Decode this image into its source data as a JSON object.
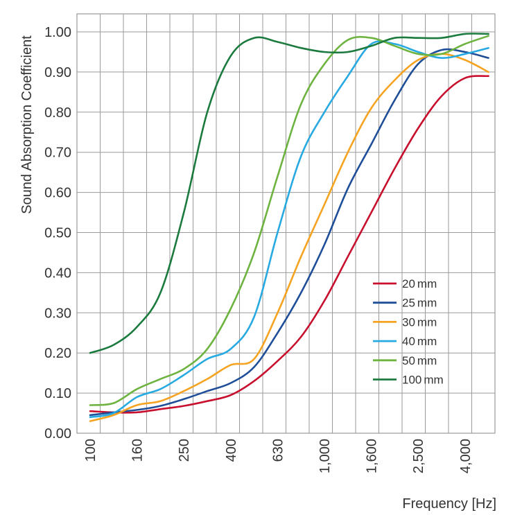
{
  "chart_data": {
    "type": "line",
    "title": "",
    "xlabel": "Frequency [Hz]",
    "ylabel": "Sound Absorption Coefficient",
    "x_scale": "log (1/3-octave bands)",
    "x": [
      100,
      125,
      160,
      200,
      250,
      315,
      400,
      500,
      630,
      800,
      1000,
      1250,
      1600,
      2000,
      2500,
      3150,
      4000,
      5000
    ],
    "x_ticks": [
      "100",
      "160",
      "250",
      "400",
      "630",
      "1,000",
      "1,600",
      "2,500",
      "4,000"
    ],
    "ylim": [
      0,
      1.0
    ],
    "y_ticks": [
      "0.00",
      "0.10",
      "0.20",
      "0.30",
      "0.40",
      "0.50",
      "0.60",
      "0.70",
      "0.80",
      "0.90",
      "1.00"
    ],
    "grid": true,
    "legend_position": "lower-right",
    "series": [
      {
        "name": "20",
        "unit": "mm",
        "color": "#c8102e",
        "values": [
          0.055,
          0.052,
          0.052,
          0.06,
          0.068,
          0.08,
          0.095,
          0.13,
          0.18,
          0.24,
          0.33,
          0.44,
          0.55,
          0.66,
          0.76,
          0.84,
          0.885,
          0.89
        ]
      },
      {
        "name": "25",
        "unit": "mm",
        "color": "#1f4e99",
        "values": [
          0.045,
          0.052,
          0.058,
          0.068,
          0.085,
          0.105,
          0.125,
          0.165,
          0.25,
          0.35,
          0.47,
          0.61,
          0.72,
          0.83,
          0.92,
          0.955,
          0.95,
          0.935
        ]
      },
      {
        "name": "30",
        "unit": "mm",
        "color": "#f5a320",
        "values": [
          0.03,
          0.045,
          0.07,
          0.08,
          0.105,
          0.135,
          0.17,
          0.185,
          0.3,
          0.44,
          0.57,
          0.7,
          0.81,
          0.88,
          0.93,
          0.945,
          0.93,
          0.9
        ]
      },
      {
        "name": "40",
        "unit": "mm",
        "color": "#27a9e1",
        "values": [
          0.04,
          0.05,
          0.09,
          0.11,
          0.145,
          0.185,
          0.21,
          0.29,
          0.5,
          0.69,
          0.8,
          0.89,
          0.97,
          0.97,
          0.95,
          0.935,
          0.945,
          0.96
        ]
      },
      {
        "name": "50",
        "unit": "mm",
        "color": "#6db33f",
        "values": [
          0.07,
          0.075,
          0.11,
          0.135,
          0.16,
          0.21,
          0.31,
          0.45,
          0.64,
          0.82,
          0.92,
          0.98,
          0.985,
          0.965,
          0.945,
          0.945,
          0.97,
          0.99
        ]
      },
      {
        "name": "100",
        "unit": "mm",
        "color": "#1b7a3e",
        "values": [
          0.2,
          0.22,
          0.265,
          0.35,
          0.55,
          0.8,
          0.94,
          0.985,
          0.975,
          0.96,
          0.95,
          0.95,
          0.965,
          0.985,
          0.985,
          0.985,
          0.995,
          0.995
        ]
      }
    ]
  }
}
